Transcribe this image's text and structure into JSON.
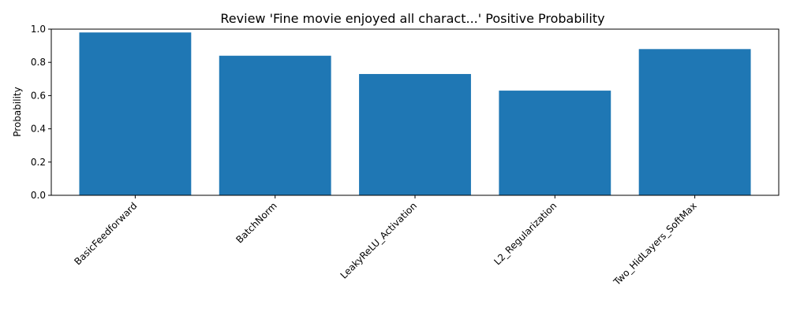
{
  "chart_data": {
    "type": "bar",
    "title": "Review 'Fine movie enjoyed all charact...' Positive Probability",
    "xlabel": "",
    "ylabel": "Probability",
    "categories": [
      "BasicFeedforward",
      "BatchNorm",
      "LeakyReLU_Activation",
      "L2_Regularization",
      "Two_HidLayers_SoftMax"
    ],
    "values": [
      0.98,
      0.84,
      0.73,
      0.63,
      0.88
    ],
    "ylim": [
      0,
      1.0
    ],
    "yticks": [
      "0.0",
      "0.2",
      "0.4",
      "0.6",
      "0.8",
      "1.0"
    ],
    "bar_color": "#1f77b4",
    "grid": false,
    "legend": "none"
  }
}
